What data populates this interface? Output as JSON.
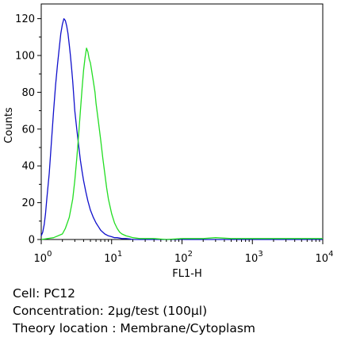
{
  "chart_data": {
    "type": "line",
    "title": "",
    "xlabel": "FL1-H",
    "ylabel": "Counts",
    "x_scale": "log",
    "xlim": [
      1,
      10000
    ],
    "ylim": [
      0,
      128
    ],
    "x_ticks": [
      {
        "base": "10",
        "exp": "0"
      },
      {
        "base": "10",
        "exp": "1"
      },
      {
        "base": "10",
        "exp": "2"
      },
      {
        "base": "10",
        "exp": "3"
      },
      {
        "base": "10",
        "exp": "4"
      }
    ],
    "y_ticks": [
      "0",
      "20",
      "40",
      "60",
      "80",
      "100",
      "120"
    ],
    "grid": false,
    "legend": "none",
    "series": [
      {
        "color": "#1010cc",
        "x": [
          1.0,
          1.05,
          1.1,
          1.15,
          1.2,
          1.3,
          1.4,
          1.5,
          1.6,
          1.7,
          1.8,
          1.9,
          2.0,
          2.1,
          2.2,
          2.3,
          2.4,
          2.5,
          2.6,
          2.7,
          2.8,
          2.9,
          3.0,
          3.2,
          3.4,
          3.6,
          3.8,
          4.0,
          4.3,
          4.6,
          5.0,
          5.5,
          6.0,
          6.5,
          7.0,
          8.0,
          9.0,
          10,
          11,
          12,
          14,
          16,
          18,
          20,
          25,
          30,
          40,
          60,
          100,
          200,
          500,
          1000,
          3000,
          10000
        ],
        "y": [
          2,
          4,
          8,
          14,
          22,
          36,
          54,
          70,
          84,
          95,
          104,
          112,
          117,
          120,
          119,
          116,
          112,
          106,
          100,
          93,
          86,
          78,
          70,
          60,
          51,
          43,
          37,
          32,
          26,
          21,
          16,
          12,
          9,
          7,
          5,
          3,
          2,
          1.5,
          1,
          1,
          0.5,
          0.5,
          0.3,
          0,
          0,
          0,
          0,
          0,
          0,
          0,
          0,
          0,
          0,
          0
        ]
      },
      {
        "color": "#22dd22",
        "x": [
          1.0,
          1.5,
          2.0,
          2.2,
          2.5,
          2.8,
          3.0,
          3.2,
          3.4,
          3.6,
          3.8,
          4.0,
          4.2,
          4.4,
          4.6,
          4.8,
          5.0,
          5.2,
          5.5,
          5.8,
          6.0,
          6.5,
          7.0,
          7.5,
          8.0,
          8.5,
          9.0,
          10,
          11,
          12,
          13,
          14,
          16,
          18,
          20,
          25,
          30,
          40,
          60,
          100,
          200,
          300,
          500,
          1000,
          3000,
          10000
        ],
        "y": [
          0,
          1,
          3,
          6,
          12,
          22,
          32,
          44,
          57,
          70,
          82,
          92,
          99,
          104,
          102,
          98,
          96,
          92,
          86,
          80,
          74,
          64,
          54,
          44,
          36,
          28,
          22,
          14,
          9,
          6,
          4,
          3,
          2,
          1.5,
          1,
          0.5,
          0.5,
          0.5,
          0,
          0.5,
          0.5,
          1,
          0.5,
          0.5,
          0.5,
          0.5
        ]
      }
    ]
  },
  "caption": {
    "cell": "Cell: PC12",
    "concentration": "Concentration: 2µg/test (100µl)",
    "location": "Theory location : Membrane/Cytoplasm"
  }
}
